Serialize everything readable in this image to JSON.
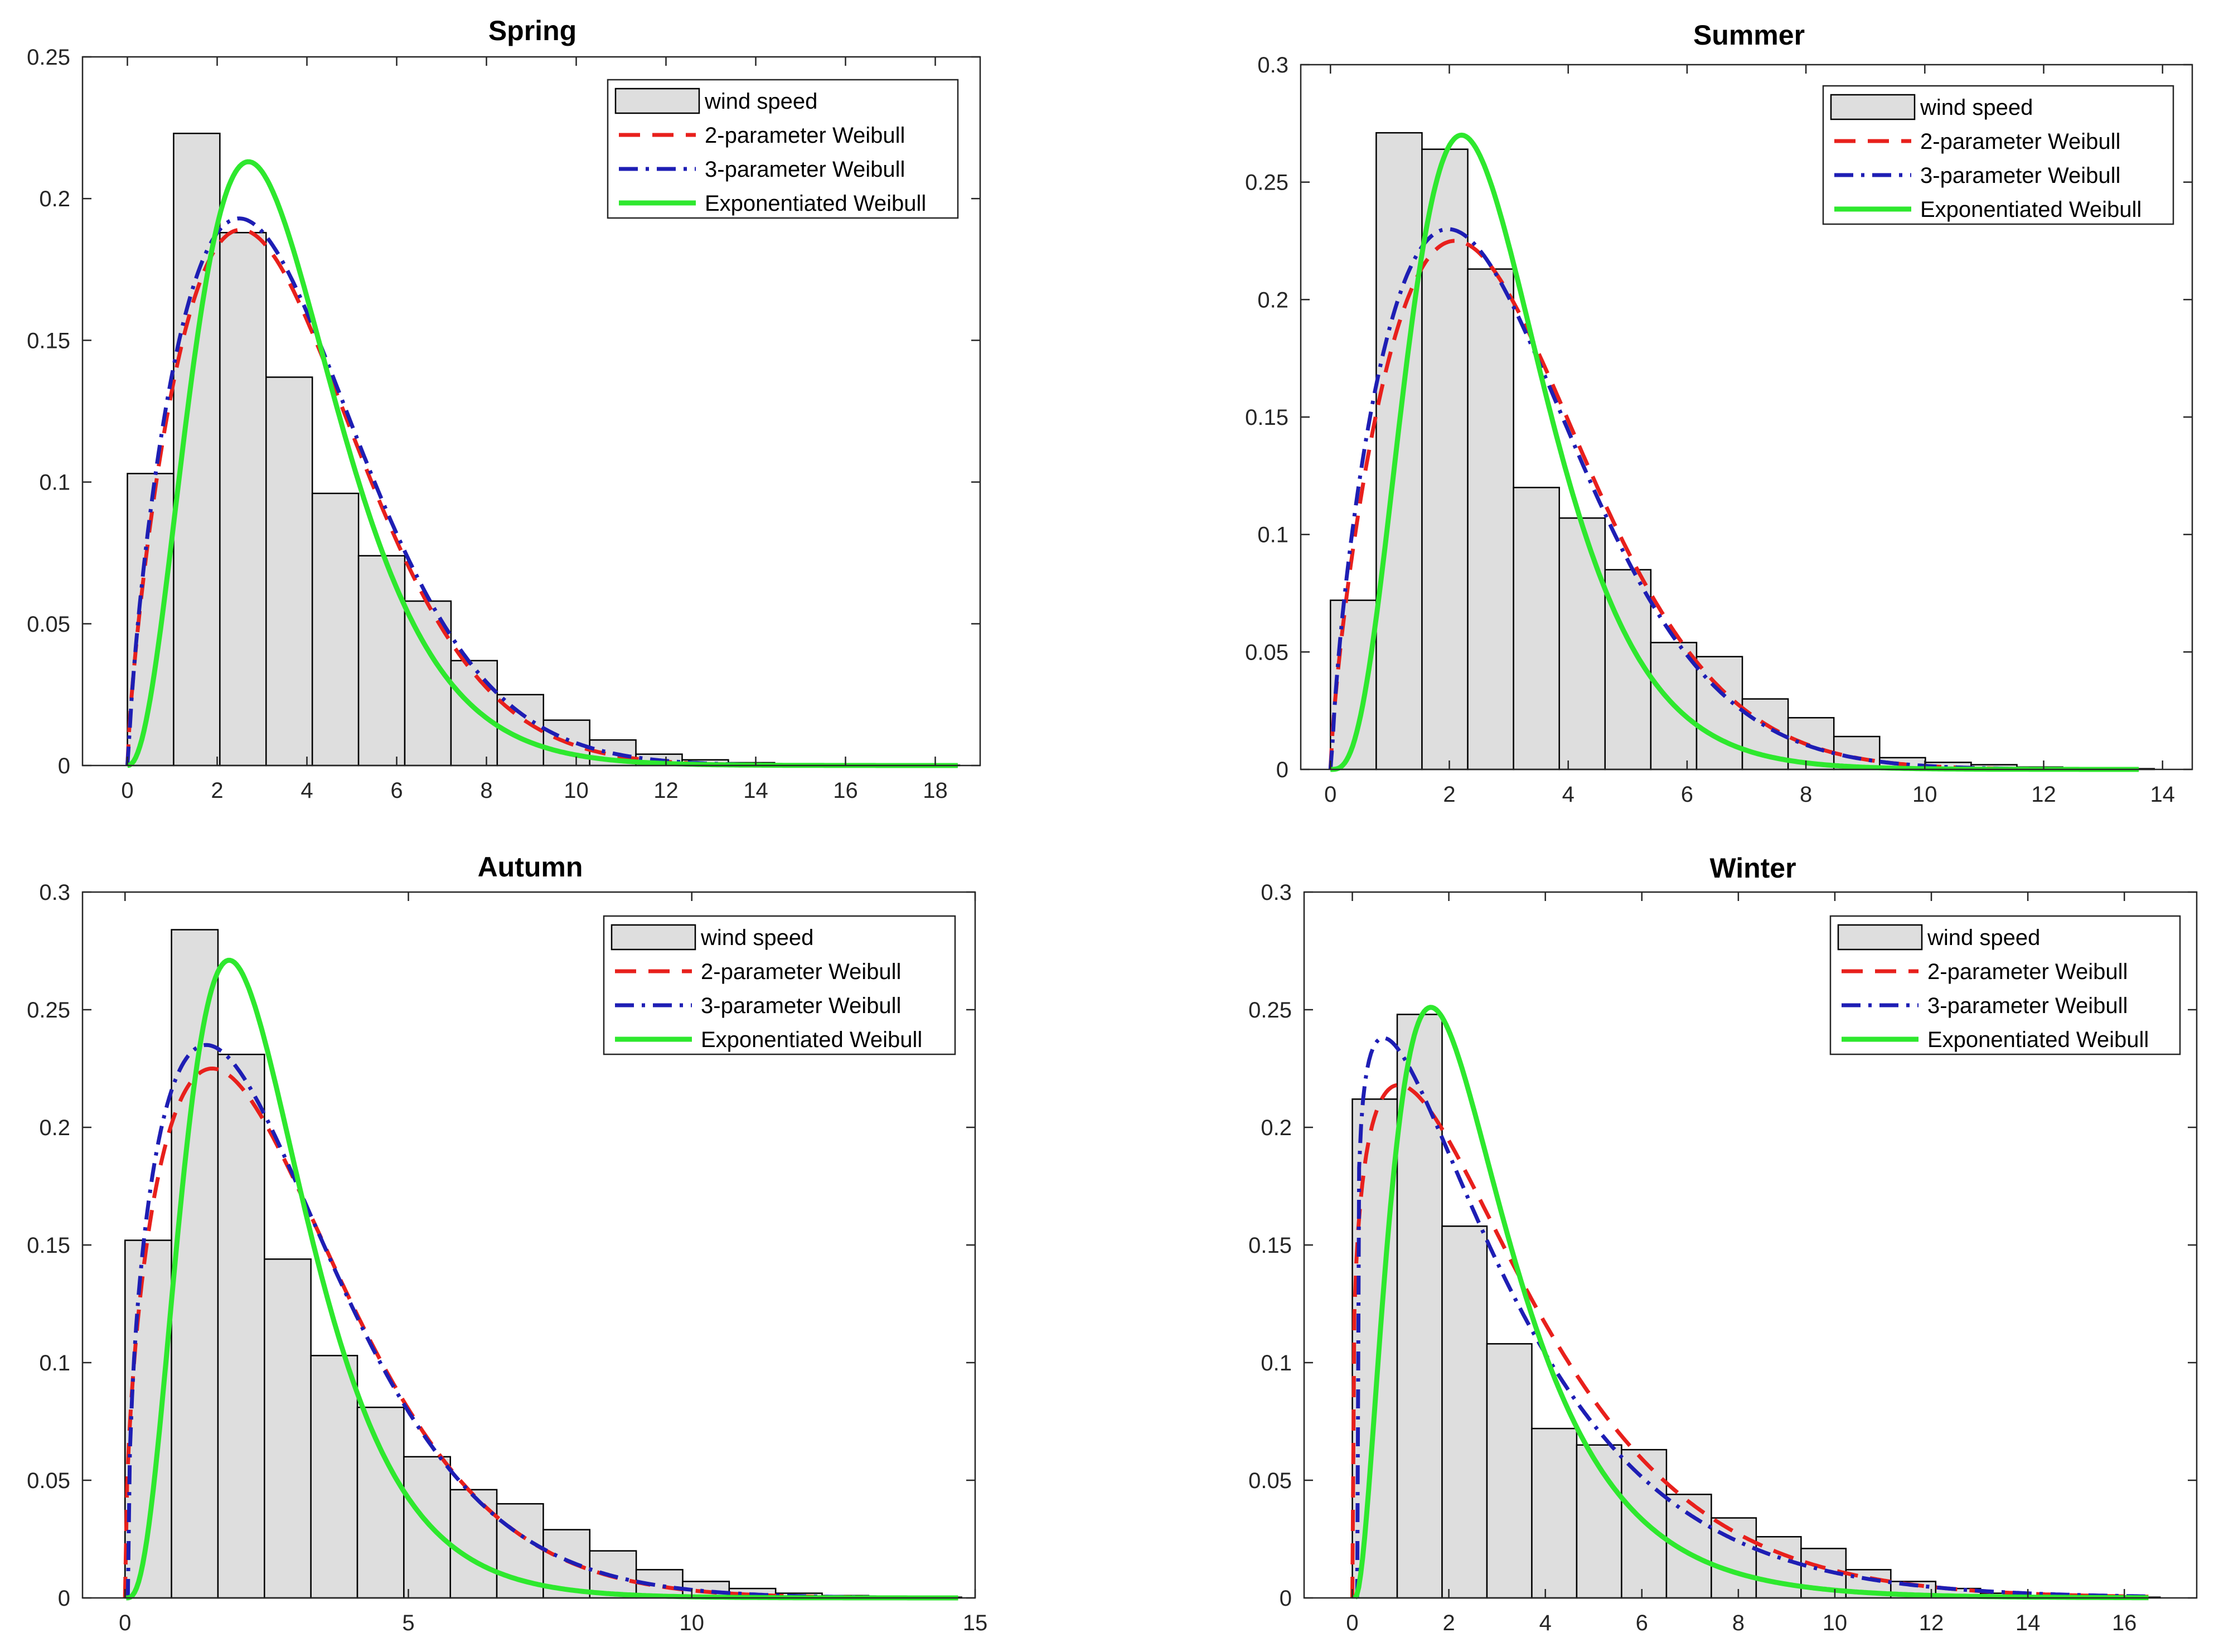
{
  "figure": {
    "bar_color": "#dedede",
    "legend_entries": [
      {
        "key": "hist",
        "label": "wind speed"
      },
      {
        "key": "w2",
        "label": "2-parameter Weibull",
        "color": "#e8201c",
        "dash": "dashed"
      },
      {
        "key": "w3",
        "label": "3-parameter Weibull",
        "color": "#1e1eb4",
        "dash": "dashdot"
      },
      {
        "key": "ew",
        "label": "Exponentiated Weibull",
        "color": "#2ee82e",
        "dash": "solid"
      }
    ]
  },
  "chart_data": [
    {
      "id": "spring",
      "type": "bar",
      "title": "Spring",
      "xlabel": "",
      "ylabel": "",
      "xlim": [
        -1,
        19
      ],
      "ylim": [
        0,
        0.25
      ],
      "xticks": [
        0,
        2,
        4,
        6,
        8,
        10,
        12,
        14,
        16,
        18
      ],
      "yticks": [
        0,
        0.05,
        0.1,
        0.15,
        0.2,
        0.25
      ],
      "yticklabels": [
        "0",
        "0.05",
        "0.1",
        "0.15",
        "0.2",
        "0.25"
      ],
      "histogram": {
        "bin_edges": [
          0,
          1.03,
          2.06,
          3.09,
          4.12,
          5.15,
          6.18,
          7.21,
          8.24,
          9.27,
          10.3,
          11.33,
          12.36,
          13.39,
          14.42,
          15.45,
          16.48,
          17.51,
          18.54
        ],
        "values": [
          0.103,
          0.223,
          0.188,
          0.137,
          0.096,
          0.074,
          0.058,
          0.037,
          0.025,
          0.016,
          0.009,
          0.004,
          0.002,
          0.001,
          0.0005,
          0.0003,
          0.0002,
          0.0001
        ]
      },
      "series": [
        {
          "name": "2-parameter Weibull",
          "key": "w2",
          "dist": "weibull2",
          "k": 1.75,
          "lambda": 4.1,
          "loc": 0,
          "x_range": [
            0,
            18.5
          ],
          "peak_approx": 0.189
        },
        {
          "name": "3-parameter Weibull",
          "key": "w3",
          "dist": "weibull3",
          "k": 1.72,
          "lambda": 4.1,
          "loc": 0.02,
          "x_range": [
            0,
            18.5
          ],
          "peak_approx": 0.193
        },
        {
          "name": "Exponentiated Weibull",
          "key": "ew",
          "dist": "expweibull",
          "k": 1.35,
          "alpha": 2.4,
          "lambda": 2.6,
          "loc": 0,
          "x_range": [
            0,
            18.5
          ],
          "peak_approx": 0.213
        }
      ]
    },
    {
      "id": "summer",
      "type": "bar",
      "title": "Summer",
      "xlabel": "",
      "ylabel": "",
      "xlim": [
        -0.5,
        14.5
      ],
      "ylim": [
        0,
        0.3
      ],
      "xticks": [
        0,
        2,
        4,
        6,
        8,
        10,
        12,
        14
      ],
      "yticks": [
        0,
        0.05,
        0.1,
        0.15,
        0.2,
        0.25,
        0.3
      ],
      "yticklabels": [
        "0",
        "0.05",
        "0.1",
        "0.15",
        "0.2",
        "0.25",
        "0.3"
      ],
      "histogram": {
        "bin_edges": [
          0,
          0.77,
          1.54,
          2.31,
          3.08,
          3.85,
          4.62,
          5.39,
          6.16,
          6.93,
          7.7,
          8.47,
          9.24,
          10.01,
          10.78,
          11.55,
          12.32,
          13.09,
          13.86
        ],
        "values": [
          0.072,
          0.271,
          0.264,
          0.213,
          0.12,
          0.107,
          0.085,
          0.054,
          0.048,
          0.03,
          0.022,
          0.014,
          0.005,
          0.003,
          0.002,
          0.001,
          0.0005,
          0.0003
        ]
      },
      "series": [
        {
          "name": "2-parameter Weibull",
          "key": "w2",
          "dist": "weibull2",
          "k": 1.75,
          "lambda": 3.4,
          "loc": 0,
          "x_range": [
            0,
            13.6
          ],
          "peak_approx": 0.225
        },
        {
          "name": "3-parameter Weibull",
          "key": "w3",
          "dist": "weibull3",
          "k": 1.7,
          "lambda": 3.3,
          "loc": 0.02,
          "x_range": [
            0,
            13.6
          ],
          "peak_approx": 0.23
        },
        {
          "name": "Exponentiated Weibull",
          "key": "ew",
          "dist": "expweibull",
          "k": 1.3,
          "alpha": 3.2,
          "lambda": 1.8,
          "loc": 0,
          "x_range": [
            0,
            13.6
          ],
          "peak_approx": 0.27
        }
      ]
    },
    {
      "id": "autumn",
      "type": "bar",
      "title": "Autumn",
      "xlabel": "",
      "ylabel": "",
      "xlim": [
        -0.75,
        15
      ],
      "ylim": [
        0,
        0.3
      ],
      "xticks": [
        0,
        5,
        10,
        15
      ],
      "yticks": [
        0,
        0.05,
        0.1,
        0.15,
        0.2,
        0.25,
        0.3
      ],
      "yticklabels": [
        "0",
        "0.05",
        "0.1",
        "0.15",
        "0.2",
        "0.25",
        "0.3"
      ],
      "histogram": {
        "bin_edges": [
          0,
          0.82,
          1.64,
          2.46,
          3.28,
          4.1,
          4.92,
          5.74,
          6.56,
          7.38,
          8.2,
          9.02,
          9.84,
          10.66,
          11.48,
          12.3,
          13.12,
          13.94,
          14.76
        ],
        "values": [
          0.152,
          0.284,
          0.231,
          0.144,
          0.103,
          0.081,
          0.06,
          0.046,
          0.04,
          0.029,
          0.02,
          0.012,
          0.007,
          0.004,
          0.002,
          0.001,
          0.0005,
          0.0003
        ]
      },
      "series": [
        {
          "name": "2-parameter Weibull",
          "key": "w2",
          "dist": "weibull2",
          "k": 1.5,
          "lambda": 3.2,
          "loc": 0,
          "x_range": [
            0,
            14.7
          ],
          "peak_approx": 0.225
        },
        {
          "name": "3-parameter Weibull",
          "key": "w3",
          "dist": "weibull3",
          "k": 1.45,
          "lambda": 3.1,
          "loc": 0.05,
          "x_range": [
            0.05,
            14.7
          ],
          "peak_approx": 0.235
        },
        {
          "name": "Exponentiated Weibull",
          "key": "ew",
          "dist": "expweibull",
          "k": 1.1,
          "alpha": 3.6,
          "lambda": 1.4,
          "loc": 0.02,
          "x_range": [
            0.02,
            14.7
          ],
          "peak_approx": 0.271
        }
      ]
    },
    {
      "id": "winter",
      "type": "bar",
      "title": "Winter",
      "xlabel": "",
      "ylabel": "",
      "xlim": [
        -1,
        17.5
      ],
      "ylim": [
        0,
        0.3
      ],
      "xticks": [
        0,
        2,
        4,
        6,
        8,
        10,
        12,
        14,
        16
      ],
      "yticks": [
        0,
        0.05,
        0.1,
        0.15,
        0.2,
        0.25,
        0.3
      ],
      "yticklabels": [
        "0",
        "0.05",
        "0.1",
        "0.15",
        "0.2",
        "0.25",
        "0.3"
      ],
      "histogram": {
        "bin_edges": [
          0,
          0.93,
          1.86,
          2.79,
          3.72,
          4.65,
          5.58,
          6.51,
          7.44,
          8.37,
          9.3,
          10.23,
          11.16,
          12.09,
          13.02,
          13.95,
          14.88,
          15.81,
          16.74
        ],
        "values": [
          0.212,
          0.248,
          0.158,
          0.108,
          0.072,
          0.065,
          0.063,
          0.044,
          0.034,
          0.026,
          0.021,
          0.012,
          0.007,
          0.004,
          0.002,
          0.001,
          0.0005,
          0.0003
        ]
      },
      "series": [
        {
          "name": "2-parameter Weibull",
          "key": "w2",
          "dist": "weibull2",
          "k": 1.25,
          "lambda": 3.5,
          "loc": 0,
          "x_range": [
            0,
            16.5
          ],
          "peak_approx": 0.218
        },
        {
          "name": "3-parameter Weibull",
          "key": "w3",
          "dist": "weibull3",
          "k": 1.15,
          "lambda": 3.2,
          "loc": 0.1,
          "x_range": [
            0.1,
            16.5
          ],
          "peak_approx": 0.238
        },
        {
          "name": "Exponentiated Weibull",
          "key": "ew",
          "dist": "expweibull",
          "k": 0.9,
          "alpha": 3.5,
          "lambda": 1.3,
          "loc": 0.05,
          "x_range": [
            0.05,
            16.5
          ],
          "peak_approx": 0.251
        }
      ]
    }
  ]
}
